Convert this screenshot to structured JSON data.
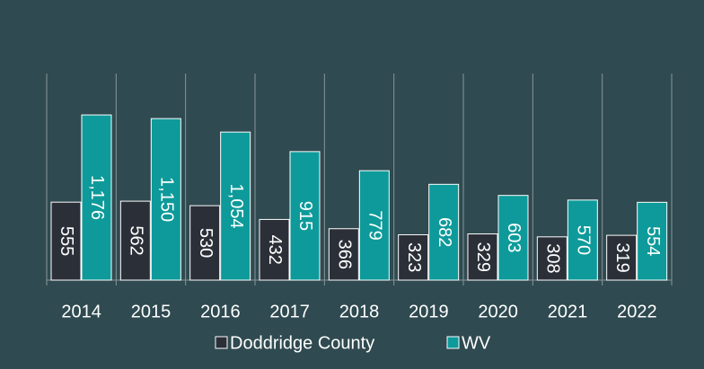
{
  "chart_data": {
    "type": "bar",
    "categories": [
      "2014",
      "2015",
      "2016",
      "2017",
      "2018",
      "2019",
      "2020",
      "2021",
      "2022"
    ],
    "series": [
      {
        "name": "Doddridge County",
        "color": "#2b2f38",
        "values": [
          555,
          562,
          530,
          432,
          366,
          323,
          329,
          308,
          319
        ],
        "value_labels": [
          "555",
          "562",
          "530",
          "432",
          "366",
          "323",
          "329",
          "308",
          "319"
        ]
      },
      {
        "name": "WV",
        "color": "#0e9a9a",
        "values": [
          1176,
          1150,
          1054,
          915,
          779,
          682,
          603,
          570,
          554
        ],
        "value_labels": [
          "1,176",
          "1,150",
          "1,054",
          "915",
          "779",
          "682",
          "603",
          "570",
          "554"
        ]
      }
    ],
    "ylim": [
      0,
      1400
    ],
    "legend": "bottom"
  }
}
